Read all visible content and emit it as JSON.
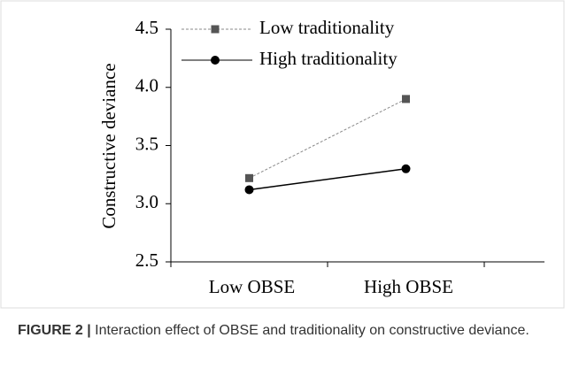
{
  "chart_data": {
    "type": "line",
    "y_label": "Constructive deviance",
    "categories": [
      "Low OBSE",
      "High OBSE"
    ],
    "series": [
      {
        "name": "Low traditionality",
        "color": "#888888",
        "marker_color": "#555555",
        "marker": "square",
        "line_style": "dashed",
        "values": [
          3.22,
          3.9
        ]
      },
      {
        "name": "High traditionality",
        "color": "#000000",
        "marker_color": "#000000",
        "marker": "circle",
        "line_style": "solid",
        "values": [
          3.12,
          3.3
        ]
      }
    ],
    "ylim": [
      2.5,
      4.5
    ],
    "yticks": [
      2.5,
      {
        "value": 3,
        "label": "3.0"
      },
      3.5,
      {
        "value": 4,
        "label": "4.0"
      },
      4.5
    ],
    "legend": "upper left"
  },
  "caption": {
    "label": "FIGURE 2 |",
    "text": "Interaction effect of OBSE and traditionality on constructive deviance."
  }
}
